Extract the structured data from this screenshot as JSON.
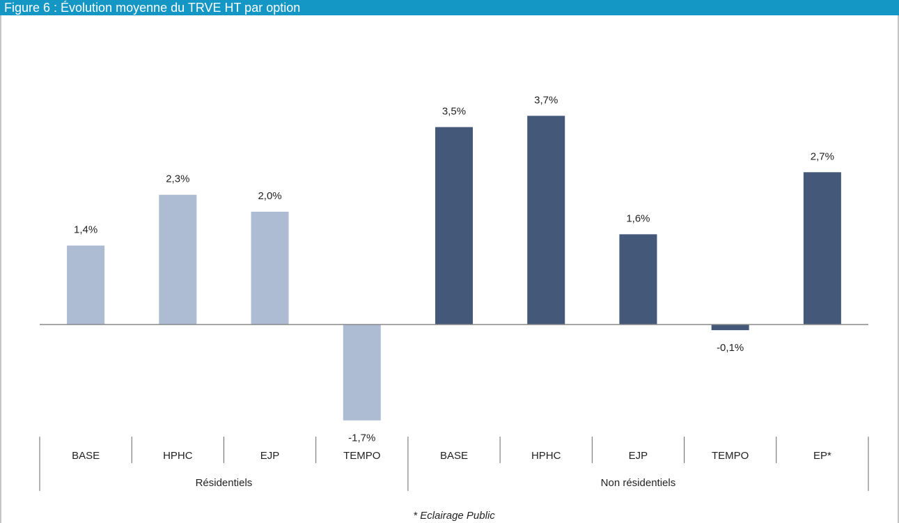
{
  "chart_data": {
    "type": "bar",
    "title": "Figure 6 : Évolution moyenne du TRVE HT par option",
    "groups": [
      {
        "name": "Résidentiels",
        "color": "#adbbd3",
        "categories": [
          "BASE",
          "HPHC",
          "EJP",
          "TEMPO"
        ],
        "values": [
          1.4,
          2.3,
          2.0,
          -1.7
        ],
        "value_labels": [
          "1,4%",
          "2,3%",
          "2,0%",
          "-1,7%"
        ]
      },
      {
        "name": "Non résidentiels",
        "color": "#44587a",
        "categories": [
          "BASE",
          "HPHC",
          "EJP",
          "TEMPO",
          "EP*"
        ],
        "values": [
          3.5,
          3.7,
          1.6,
          -0.1,
          2.7
        ],
        "value_labels": [
          "3,5%",
          "3,7%",
          "1,6%",
          "-0,1%",
          "2,7%"
        ]
      }
    ],
    "footnote": "* Eclairage Public"
  }
}
